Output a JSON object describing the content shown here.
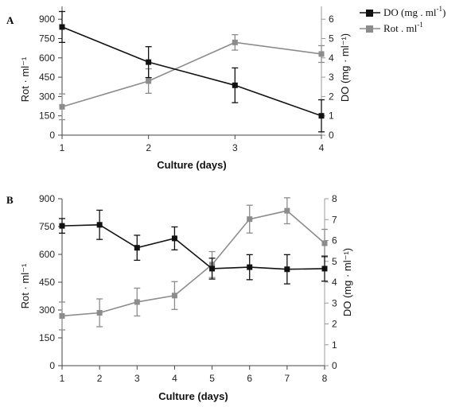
{
  "legend": {
    "entries": [
      {
        "label": "DO (mg . ml",
        "sup": "-1",
        "tail": ")",
        "color": "#111111"
      },
      {
        "label": "Rot . ml",
        "sup": "-1",
        "tail": "",
        "color": "#8c8c8c"
      }
    ]
  },
  "chart_data": [
    {
      "panel_label": "A",
      "type": "line",
      "x": [
        1,
        2,
        3,
        4
      ],
      "xlabel": "Culture (days)",
      "ylabel_left": "Rot · ml⁻¹",
      "ylabel_right": "DO (mg · ml⁻¹)",
      "xlim": [
        1,
        4
      ],
      "ylim_left": [
        0,
        1000
      ],
      "yticks_left": [
        0,
        150,
        300,
        450,
        600,
        750,
        900
      ],
      "ylim_right": [
        0,
        6.6667
      ],
      "yticks_right": [
        0,
        1,
        2,
        3,
        4,
        5,
        6
      ],
      "series": [
        {
          "name": "DO (mg . ml-1)",
          "axis": "right",
          "color": "#111111",
          "values": [
            5.6,
            3.78,
            2.58,
            1.0
          ],
          "errors": [
            0.8,
            0.8,
            0.9,
            0.83
          ]
        },
        {
          "name": "Rot . ml-1",
          "axis": "left",
          "color": "#8c8c8c",
          "values": [
            220,
            420,
            720,
            630
          ],
          "errors": [
            100,
            95,
            60,
            65
          ]
        }
      ]
    },
    {
      "panel_label": "B",
      "type": "line",
      "x": [
        1,
        2,
        3,
        4,
        5,
        6,
        7,
        8
      ],
      "xlabel": "Culture (days)",
      "ylabel_left": "Rot · ml⁻¹",
      "ylabel_right": "DO (mg · ml⁻¹)",
      "xlim": [
        1,
        8
      ],
      "ylim_left": [
        0,
        900
      ],
      "yticks_left": [
        0,
        150,
        300,
        450,
        600,
        750,
        900
      ],
      "ylim_right": [
        0,
        8
      ],
      "yticks_right": [
        0,
        1,
        2,
        3,
        4,
        5,
        6,
        7,
        8
      ],
      "series": [
        {
          "name": "DO (mg . ml-1)",
          "axis": "right",
          "color": "#111111",
          "values": [
            6.7,
            6.75,
            5.65,
            6.1,
            4.65,
            4.72,
            4.62,
            4.65
          ],
          "errors": [
            0.35,
            0.7,
            0.6,
            0.55,
            0.5,
            0.6,
            0.7,
            0.6
          ]
        },
        {
          "name": "Rot . ml-1",
          "axis": "left",
          "color": "#8c8c8c",
          "values": [
            268,
            285,
            343,
            378,
            545,
            790,
            835,
            660
          ],
          "errors": [
            75,
            75,
            75,
            75,
            70,
            75,
            70,
            75
          ]
        }
      ]
    }
  ]
}
